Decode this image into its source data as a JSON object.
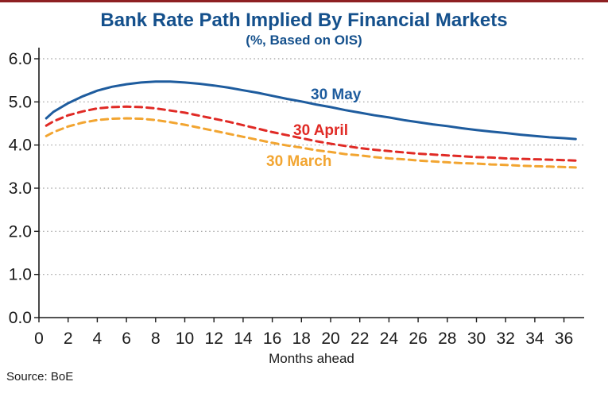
{
  "page": {
    "title": "Bank Rate Path Implied By Financial Markets",
    "subtitle": "(%, Based on OIS)",
    "source": "Source: BoE"
  },
  "colors": {
    "title_blue": "#14508C",
    "top_rule_red": "#8E2022",
    "axis": "#1a1a1a",
    "grid": "#9a9a9a",
    "tick_text": "#1a1a1a",
    "may_blue": "#1E5C9E",
    "april_red": "#E02A25",
    "march_orange": "#F2A531"
  },
  "chart_data": {
    "type": "line",
    "title": "Bank Rate Path Implied By Financial Markets",
    "subtitle": "(%, Based on OIS)",
    "xlabel": "Months ahead",
    "ylabel": "",
    "xlim": [
      0,
      37.8
    ],
    "ylim": [
      0,
      6.0
    ],
    "x_ticks": [
      0,
      2,
      4,
      6,
      8,
      10,
      12,
      14,
      16,
      18,
      20,
      22,
      24,
      26,
      28,
      30,
      32,
      34,
      36
    ],
    "y_ticks": [
      "0.0",
      "1.0",
      "2.0",
      "3.0",
      "4.0",
      "5.0",
      "6.0"
    ],
    "grid": "horizontal dotted gridlines at each 1.0",
    "legend_position": "inline labels next to lines",
    "series": [
      {
        "name": "30 May",
        "style": "solid",
        "color": "#1E5C9E",
        "points": [
          [
            0.5,
            4.62
          ],
          [
            1,
            4.77
          ],
          [
            2,
            4.97
          ],
          [
            3,
            5.13
          ],
          [
            4,
            5.26
          ],
          [
            5,
            5.35
          ],
          [
            6,
            5.41
          ],
          [
            7,
            5.45
          ],
          [
            8,
            5.47
          ],
          [
            9,
            5.47
          ],
          [
            10,
            5.45
          ],
          [
            11,
            5.42
          ],
          [
            12,
            5.38
          ],
          [
            13,
            5.33
          ],
          [
            14,
            5.27
          ],
          [
            15,
            5.21
          ],
          [
            16,
            5.14
          ],
          [
            17,
            5.07
          ],
          [
            18,
            5.01
          ],
          [
            19,
            4.94
          ],
          [
            20,
            4.88
          ],
          [
            21,
            4.81
          ],
          [
            22,
            4.75
          ],
          [
            23,
            4.69
          ],
          [
            24,
            4.64
          ],
          [
            25,
            4.58
          ],
          [
            26,
            4.53
          ],
          [
            27,
            4.48
          ],
          [
            28,
            4.44
          ],
          [
            29,
            4.39
          ],
          [
            30,
            4.35
          ],
          [
            31,
            4.31
          ],
          [
            32,
            4.28
          ],
          [
            33,
            4.24
          ],
          [
            34,
            4.21
          ],
          [
            35,
            4.18
          ],
          [
            36,
            4.16
          ],
          [
            36.8,
            4.14
          ]
        ]
      },
      {
        "name": "30 April",
        "style": "dashed",
        "color": "#E02A25",
        "points": [
          [
            0.5,
            4.45
          ],
          [
            1,
            4.55
          ],
          [
            2,
            4.69
          ],
          [
            3,
            4.78
          ],
          [
            4,
            4.85
          ],
          [
            5,
            4.88
          ],
          [
            6,
            4.89
          ],
          [
            7,
            4.88
          ],
          [
            8,
            4.85
          ],
          [
            9,
            4.8
          ],
          [
            10,
            4.75
          ],
          [
            11,
            4.68
          ],
          [
            12,
            4.61
          ],
          [
            13,
            4.54
          ],
          [
            14,
            4.46
          ],
          [
            15,
            4.38
          ],
          [
            16,
            4.3
          ],
          [
            17,
            4.23
          ],
          [
            18,
            4.16
          ],
          [
            19,
            4.09
          ],
          [
            20,
            4.03
          ],
          [
            21,
            3.98
          ],
          [
            22,
            3.93
          ],
          [
            23,
            3.89
          ],
          [
            24,
            3.86
          ],
          [
            25,
            3.83
          ],
          [
            26,
            3.8
          ],
          [
            27,
            3.78
          ],
          [
            28,
            3.76
          ],
          [
            29,
            3.74
          ],
          [
            30,
            3.72
          ],
          [
            31,
            3.71
          ],
          [
            32,
            3.69
          ],
          [
            33,
            3.68
          ],
          [
            34,
            3.67
          ],
          [
            35,
            3.66
          ],
          [
            36,
            3.65
          ],
          [
            36.8,
            3.64
          ]
        ]
      },
      {
        "name": "30 March",
        "style": "dashed",
        "color": "#F2A531",
        "points": [
          [
            0.5,
            4.21
          ],
          [
            1,
            4.3
          ],
          [
            2,
            4.43
          ],
          [
            3,
            4.52
          ],
          [
            4,
            4.58
          ],
          [
            5,
            4.61
          ],
          [
            6,
            4.62
          ],
          [
            7,
            4.61
          ],
          [
            8,
            4.58
          ],
          [
            9,
            4.53
          ],
          [
            10,
            4.47
          ],
          [
            11,
            4.4
          ],
          [
            12,
            4.33
          ],
          [
            13,
            4.26
          ],
          [
            14,
            4.19
          ],
          [
            15,
            4.12
          ],
          [
            16,
            4.05
          ],
          [
            17,
            3.99
          ],
          [
            18,
            3.94
          ],
          [
            19,
            3.88
          ],
          [
            20,
            3.84
          ],
          [
            21,
            3.79
          ],
          [
            22,
            3.76
          ],
          [
            23,
            3.72
          ],
          [
            24,
            3.69
          ],
          [
            25,
            3.67
          ],
          [
            26,
            3.64
          ],
          [
            27,
            3.62
          ],
          [
            28,
            3.6
          ],
          [
            29,
            3.58
          ],
          [
            30,
            3.57
          ],
          [
            31,
            3.55
          ],
          [
            32,
            3.54
          ],
          [
            33,
            3.52
          ],
          [
            34,
            3.51
          ],
          [
            35,
            3.5
          ],
          [
            36,
            3.49
          ],
          [
            36.8,
            3.48
          ]
        ]
      }
    ]
  }
}
